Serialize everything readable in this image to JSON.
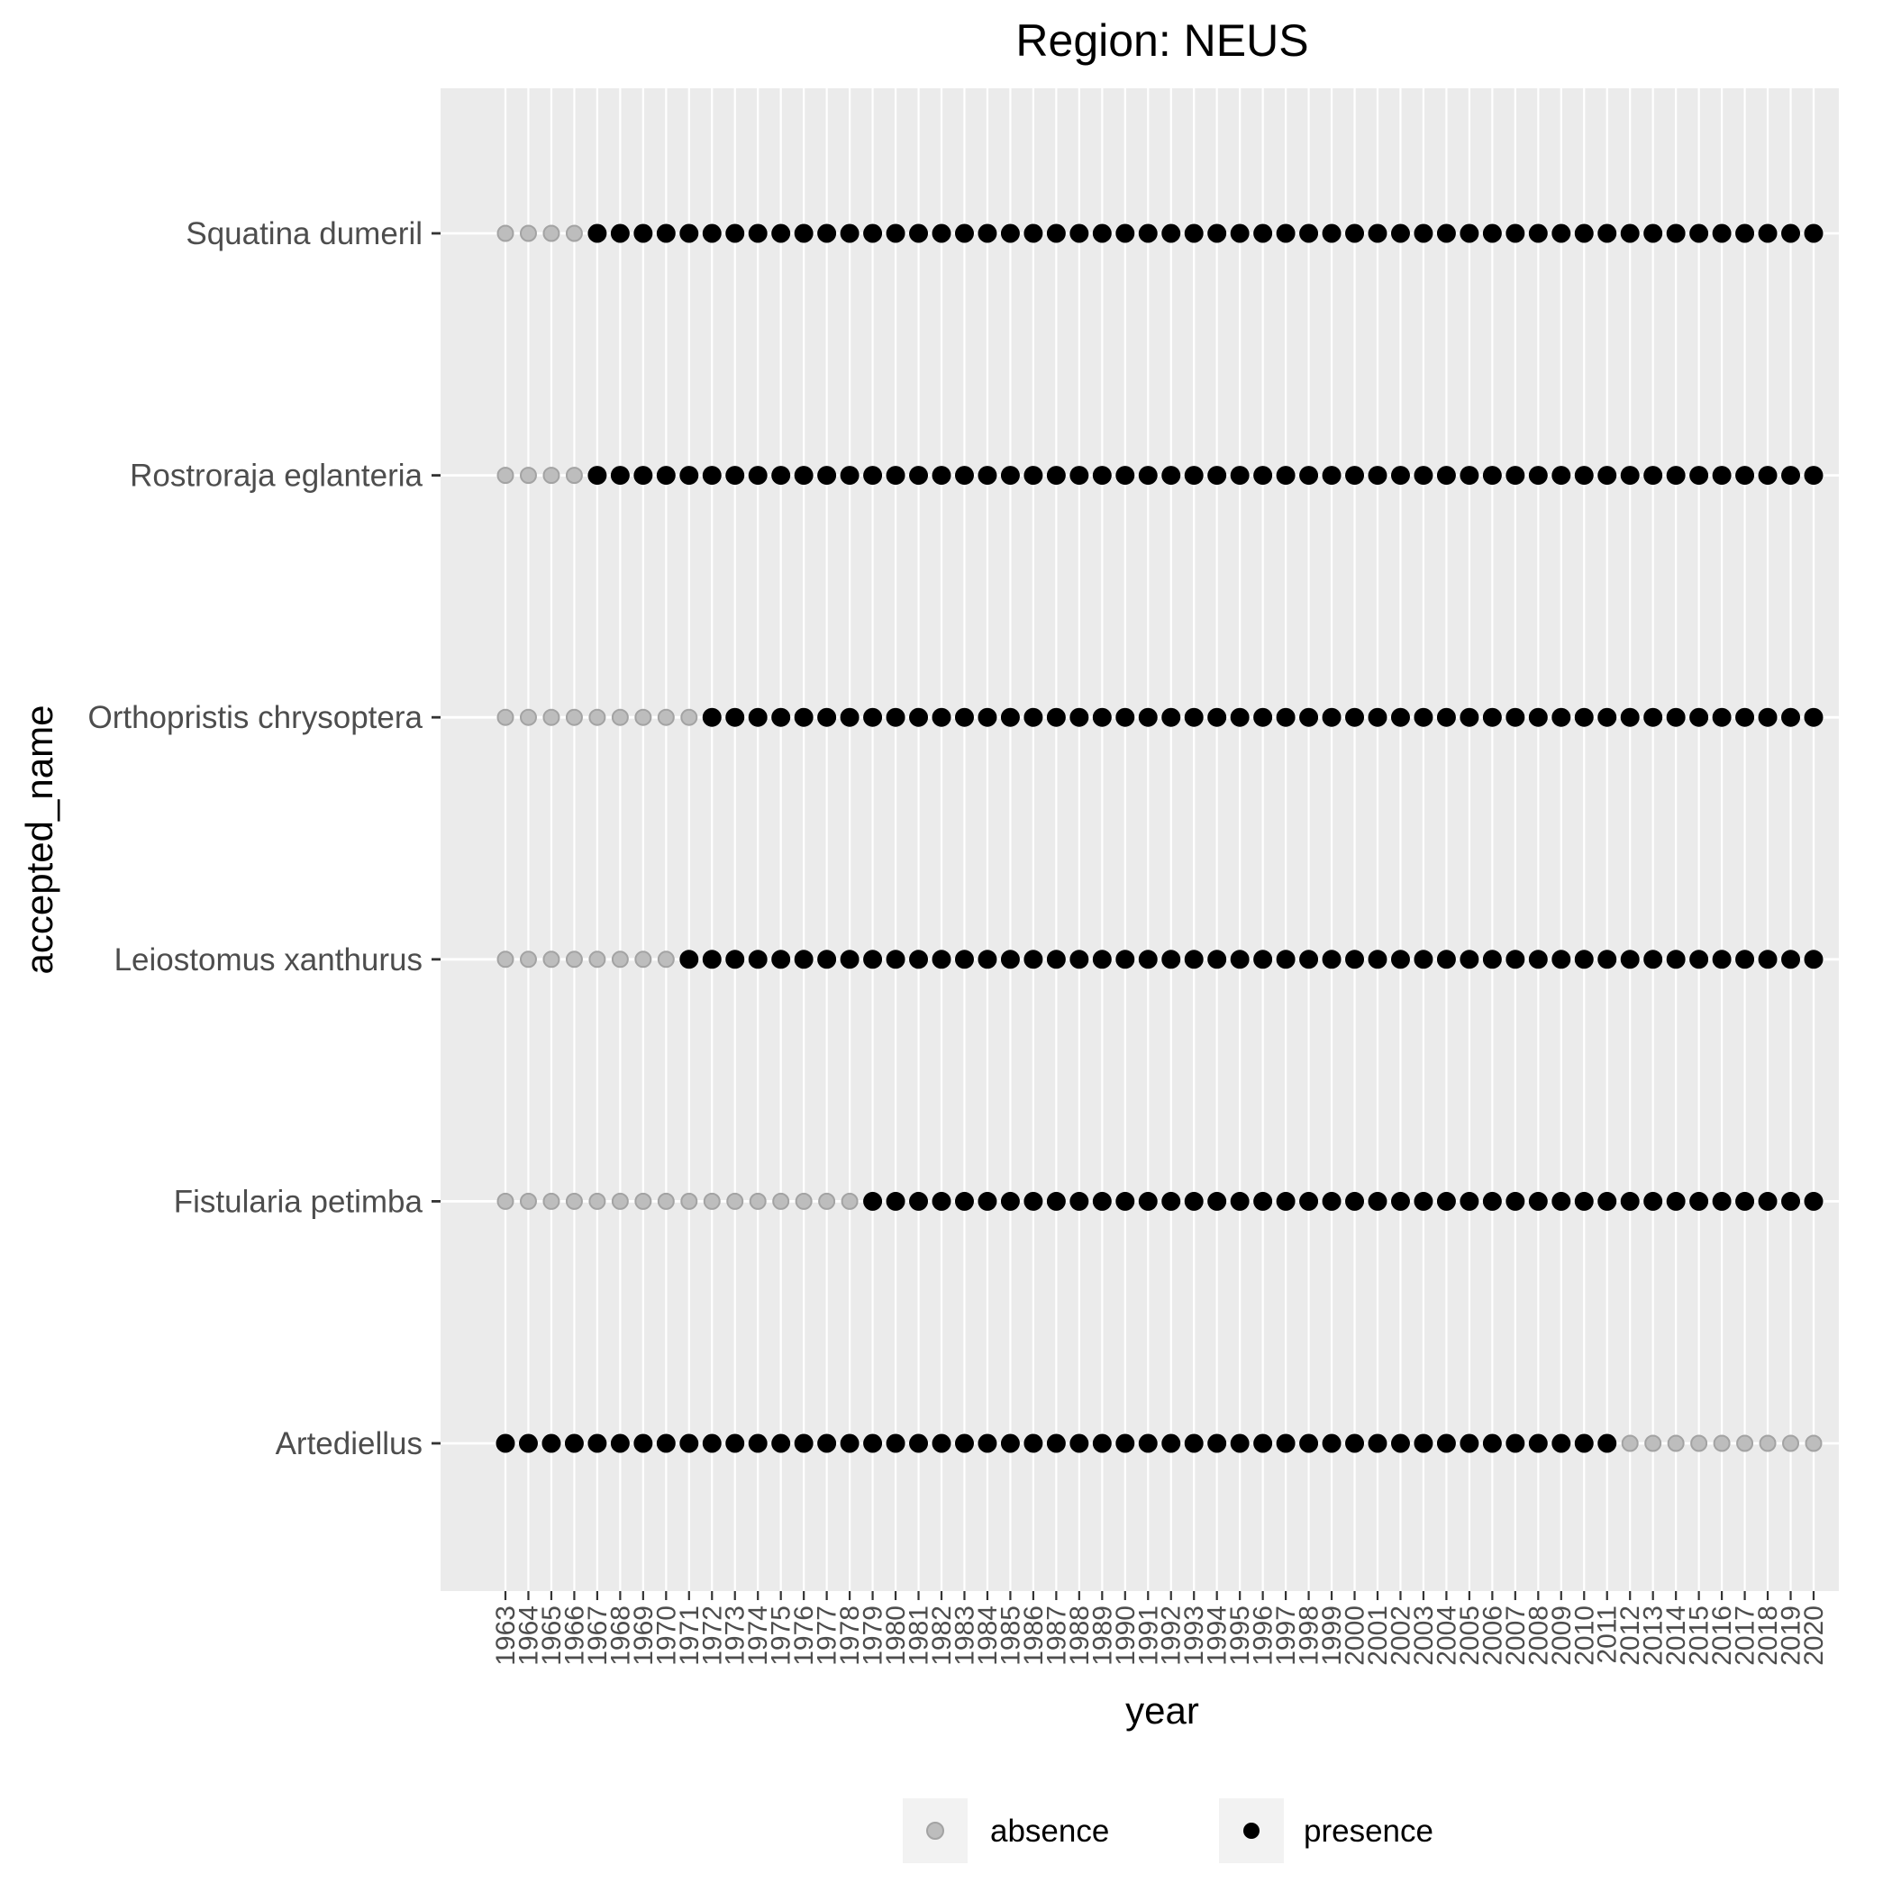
{
  "chart_data": {
    "type": "scatter",
    "title": "Region: NEUS",
    "xlabel": "year",
    "ylabel": "accepted_name",
    "x": [
      1963,
      1964,
      1965,
      1966,
      1967,
      1968,
      1969,
      1970,
      1971,
      1972,
      1973,
      1974,
      1975,
      1976,
      1977,
      1978,
      1979,
      1980,
      1981,
      1982,
      1983,
      1984,
      1985,
      1986,
      1987,
      1988,
      1989,
      1990,
      1991,
      1992,
      1993,
      1994,
      1995,
      1996,
      1997,
      1998,
      1999,
      2000,
      2001,
      2002,
      2003,
      2004,
      2005,
      2006,
      2007,
      2008,
      2009,
      2010,
      2011,
      2012,
      2013,
      2014,
      2015,
      2016,
      2017,
      2018,
      2019,
      2020
    ],
    "categories": [
      "Squatina dumeril",
      "Rostroraja eglanteria",
      "Orthopristis chrysoptera",
      "Leiostomus xanthurus",
      "Fistularia petimba",
      "Artediellus"
    ],
    "series": [
      {
        "category": "Squatina dumeril",
        "absence_years": [
          1963,
          1964,
          1965,
          1966
        ],
        "presence_range": [
          1967,
          2020
        ]
      },
      {
        "category": "Rostroraja eglanteria",
        "absence_years": [
          1963,
          1964,
          1965,
          1966
        ],
        "presence_range": [
          1967,
          2020
        ]
      },
      {
        "category": "Orthopristis chrysoptera",
        "absence_years": [
          1963,
          1964,
          1965,
          1966,
          1967,
          1968,
          1969,
          1970,
          1971
        ],
        "presence_range": [
          1972,
          2020
        ]
      },
      {
        "category": "Leiostomus xanthurus",
        "absence_years": [
          1963,
          1964,
          1965,
          1966,
          1967,
          1968,
          1969,
          1970
        ],
        "presence_range": [
          1971,
          2020
        ]
      },
      {
        "category": "Fistularia petimba",
        "absence_years": [
          1963,
          1964,
          1965,
          1966,
          1967,
          1968,
          1969,
          1970,
          1971,
          1972,
          1973,
          1974,
          1975,
          1976,
          1977,
          1978
        ],
        "presence_range": [
          1979,
          2020
        ]
      },
      {
        "category": "Artediellus",
        "absence_years": [
          2012,
          2013,
          2014,
          2015,
          2016,
          2017,
          2018,
          2019,
          2020
        ],
        "presence_range": [
          1963,
          2011
        ]
      }
    ],
    "legend": {
      "position": "bottom",
      "items": [
        {
          "label": "absence",
          "color": "#bdbdbd"
        },
        {
          "label": "presence",
          "color": "#000000"
        }
      ]
    },
    "panel_background": "#ebebeb",
    "gridline_color": "#ffffff",
    "grid": true
  }
}
